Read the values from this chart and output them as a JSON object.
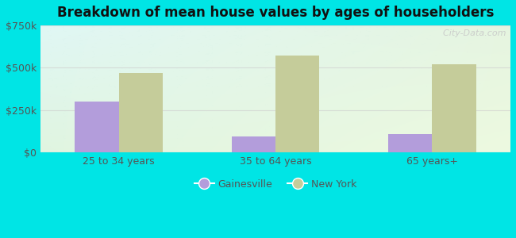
{
  "title": "Breakdown of mean house values by ages of householders",
  "categories": [
    "25 to 34 years",
    "35 to 64 years",
    "65 years+"
  ],
  "gainesville": [
    300000,
    95000,
    110000
  ],
  "new_york": [
    470000,
    570000,
    520000
  ],
  "gainesville_color": "#b39ddb",
  "new_york_color": "#c5cc9a",
  "ylim": [
    0,
    750000
  ],
  "yticks": [
    0,
    250000,
    500000,
    750000
  ],
  "ytick_labels": [
    "$0",
    "$250k",
    "$500k",
    "$750k"
  ],
  "bar_width": 0.28,
  "background_color": "#00e5e5",
  "legend_gainesville": "Gainesville",
  "legend_new_york": "New York",
  "watermark": "  City-Data.com",
  "grid_color": "#cccccc",
  "tick_color": "#555555",
  "title_color": "#111111",
  "plot_bg_topleft": [
    0.88,
    0.97,
    0.96,
    1.0
  ],
  "plot_bg_topright": [
    0.9,
    0.96,
    0.88,
    1.0
  ],
  "plot_bg_bottomleft": [
    0.88,
    0.96,
    0.88,
    1.0
  ],
  "plot_bg_bottomright": [
    0.93,
    0.98,
    0.88,
    1.0
  ]
}
